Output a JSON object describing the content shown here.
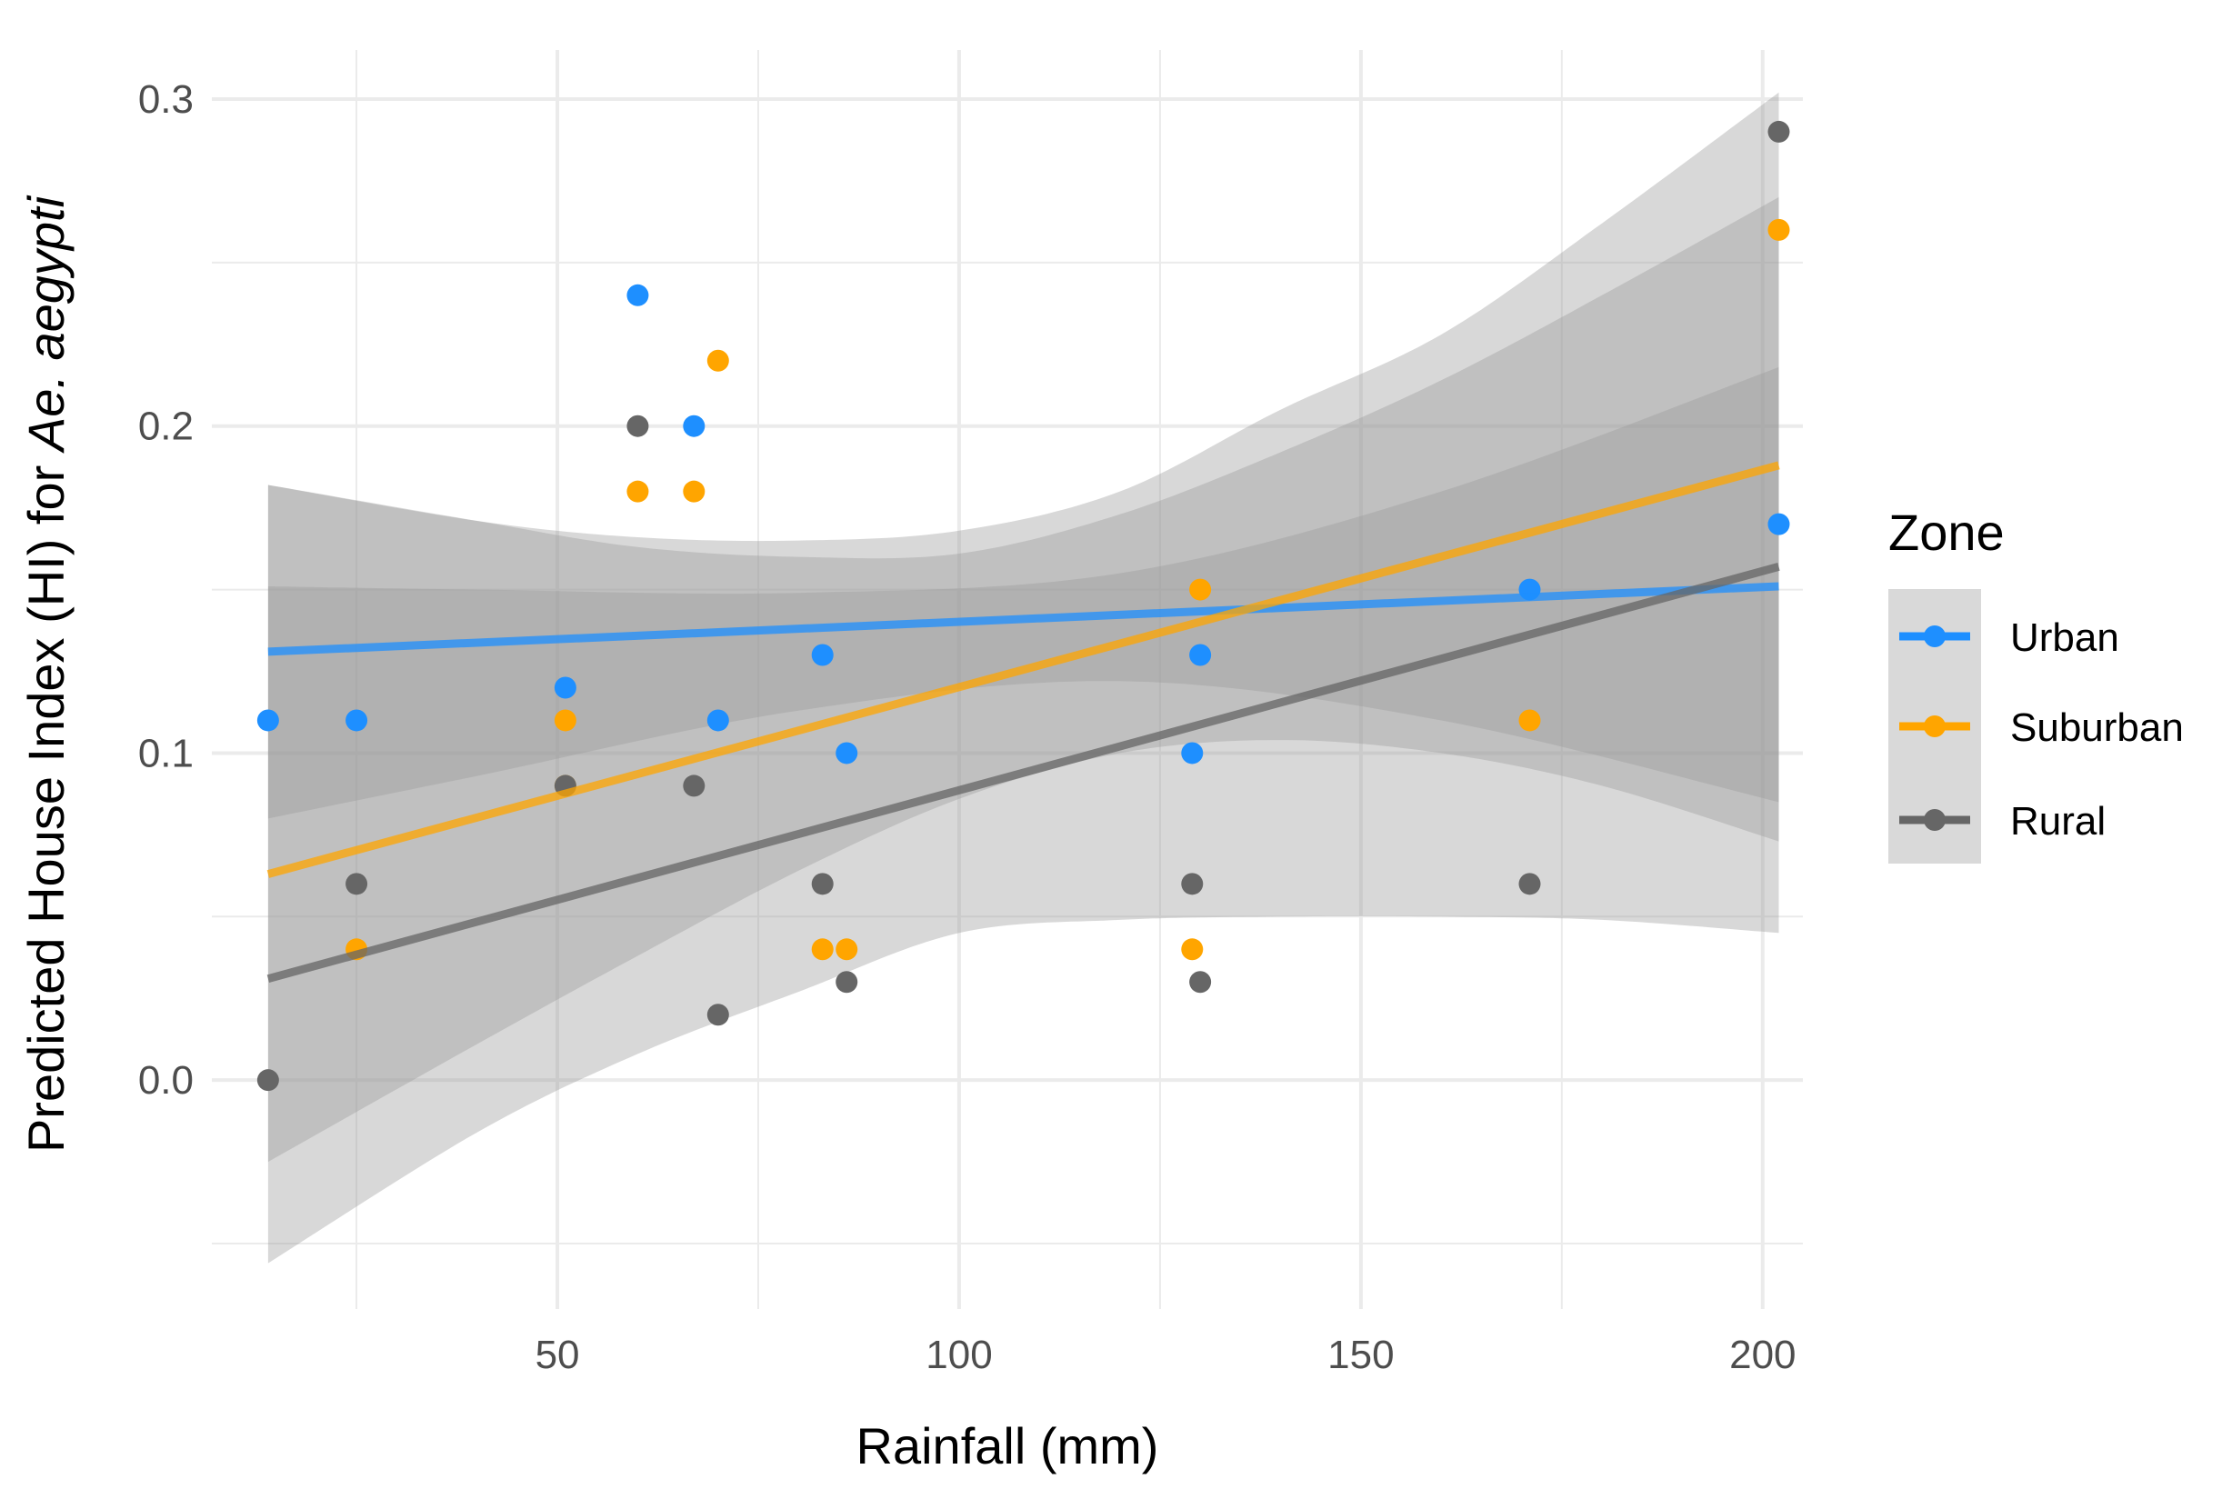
{
  "chart_data": {
    "type": "scatter",
    "xlabel": "Rainfall (mm)",
    "ylabel_parts": [
      "Predicted House Index (HI) for ",
      "Ae. aegypti"
    ],
    "xlim": [
      7,
      205
    ],
    "ylim": [
      -0.07,
      0.315
    ],
    "x_ticks": [
      50,
      100,
      150,
      200
    ],
    "x_minor": [
      25,
      75,
      125,
      175
    ],
    "y_ticks": [
      0.0,
      0.1,
      0.2,
      0.3
    ],
    "y_minor": [
      -0.05,
      0.05,
      0.15,
      0.25
    ],
    "y_tick_labels": [
      "0.0",
      "0.1",
      "0.2",
      "0.3"
    ],
    "grid": true,
    "legend": {
      "title": "Zone",
      "position": "right"
    },
    "series": [
      {
        "name": "Urban",
        "color": "#1e8fff",
        "points": [
          [
            14,
            0.11
          ],
          [
            25,
            0.11
          ],
          [
            51,
            0.12
          ],
          [
            60,
            0.24
          ],
          [
            67,
            0.2
          ],
          [
            70,
            0.11
          ],
          [
            83,
            0.13
          ],
          [
            86,
            0.1
          ],
          [
            129,
            0.1
          ],
          [
            130,
            0.13
          ],
          [
            171,
            0.15
          ],
          [
            202,
            0.17
          ]
        ],
        "fit": [
          [
            14,
            0.131
          ],
          [
            202,
            0.151
          ]
        ],
        "ci_upper": [
          [
            14,
            0.151
          ],
          [
            40,
            0.15
          ],
          [
            80,
            0.149
          ],
          [
            120,
            0.155
          ],
          [
            160,
            0.18
          ],
          [
            202,
            0.218
          ]
        ],
        "ci_lower": [
          [
            14,
            0.08
          ],
          [
            40,
            0.093
          ],
          [
            80,
            0.113
          ],
          [
            120,
            0.122
          ],
          [
            160,
            0.11
          ],
          [
            202,
            0.085
          ]
        ]
      },
      {
        "name": "Suburban",
        "color": "#ffa500",
        "points": [
          [
            25,
            0.04
          ],
          [
            51,
            0.11
          ],
          [
            51,
            0.09
          ],
          [
            60,
            0.18
          ],
          [
            67,
            0.18
          ],
          [
            70,
            0.22
          ],
          [
            83,
            0.04
          ],
          [
            86,
            0.04
          ],
          [
            129,
            0.04
          ],
          [
            130,
            0.15
          ],
          [
            171,
            0.11
          ],
          [
            202,
            0.26
          ]
        ],
        "fit": [
          [
            14,
            0.063
          ],
          [
            202,
            0.188
          ]
        ],
        "ci_upper": [
          [
            14,
            0.182
          ],
          [
            40,
            0.171
          ],
          [
            60,
            0.163
          ],
          [
            80,
            0.16
          ],
          [
            100,
            0.161
          ],
          [
            120,
            0.173
          ],
          [
            140,
            0.192
          ],
          [
            160,
            0.214
          ],
          [
            180,
            0.24
          ],
          [
            202,
            0.27
          ]
        ],
        "ci_lower": [
          [
            14,
            -0.025
          ],
          [
            40,
            0.011
          ],
          [
            60,
            0.038
          ],
          [
            80,
            0.064
          ],
          [
            100,
            0.086
          ],
          [
            120,
            0.1
          ],
          [
            140,
            0.104
          ],
          [
            160,
            0.1
          ],
          [
            180,
            0.09
          ],
          [
            202,
            0.073
          ]
        ]
      },
      {
        "name": "Rural",
        "color": "#666666",
        "points": [
          [
            14,
            0.0
          ],
          [
            25,
            0.06
          ],
          [
            51,
            0.09
          ],
          [
            60,
            0.2
          ],
          [
            67,
            0.09
          ],
          [
            70,
            0.02
          ],
          [
            83,
            0.06
          ],
          [
            86,
            0.03
          ],
          [
            129,
            0.06
          ],
          [
            130,
            0.03
          ],
          [
            171,
            0.06
          ],
          [
            202,
            0.29
          ]
        ],
        "fit": [
          [
            14,
            0.031
          ],
          [
            202,
            0.157
          ]
        ],
        "ci_upper": [
          [
            14,
            0.182
          ],
          [
            40,
            0.171
          ],
          [
            60,
            0.166
          ],
          [
            80,
            0.165
          ],
          [
            100,
            0.168
          ],
          [
            120,
            0.18
          ],
          [
            140,
            0.205
          ],
          [
            160,
            0.228
          ],
          [
            180,
            0.262
          ],
          [
            202,
            0.302
          ]
        ],
        "ci_lower": [
          [
            14,
            -0.056
          ],
          [
            40,
            -0.016
          ],
          [
            60,
            0.008
          ],
          [
            80,
            0.027
          ],
          [
            100,
            0.045
          ],
          [
            120,
            0.049
          ],
          [
            140,
            0.05
          ],
          [
            160,
            0.05
          ],
          [
            180,
            0.049
          ],
          [
            202,
            0.045
          ]
        ]
      }
    ]
  }
}
